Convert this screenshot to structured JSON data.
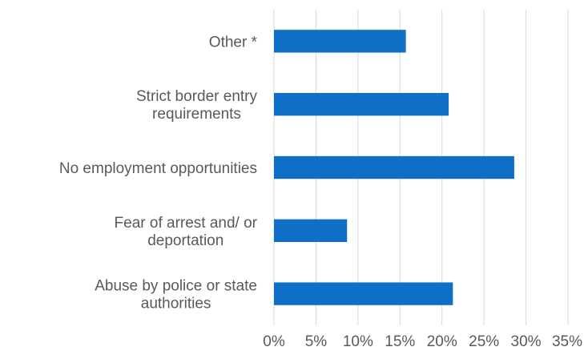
{
  "chart_data": {
    "type": "bar",
    "orientation": "horizontal",
    "title": "",
    "xlabel": "",
    "ylabel": "",
    "categories": [
      [
        "Other *"
      ],
      [
        "Strict border entry",
        "requirements"
      ],
      [
        "No employment opportunities"
      ],
      [
        "Fear of arrest and/ or",
        "deportation"
      ],
      [
        "Abuse by police or state",
        "authorities"
      ]
    ],
    "values": [
      15.7,
      20.8,
      28.6,
      8.7,
      21.3
    ],
    "xlim": [
      0,
      35
    ],
    "x_ticks": [
      0,
      5,
      10,
      15,
      20,
      25,
      30,
      35
    ],
    "x_tick_labels": [
      "0%",
      "5%",
      "10%",
      "15%",
      "20%",
      "25%",
      "30%",
      "35%"
    ],
    "grid": "vertical",
    "legend": "none",
    "colors": {
      "bar": "#0f6fc6",
      "grid": "#d9d9d9",
      "text": "#595959"
    }
  }
}
